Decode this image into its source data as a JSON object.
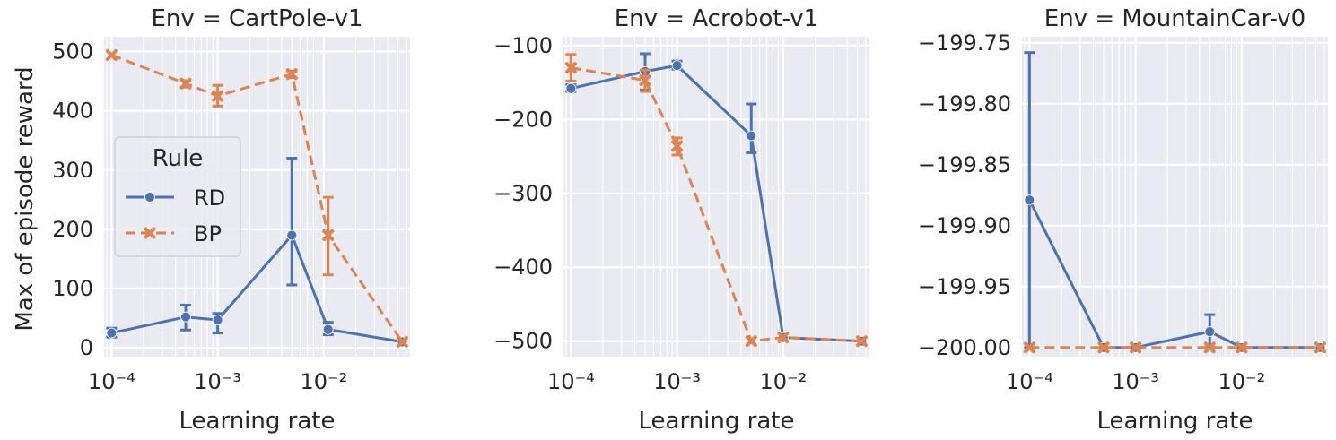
{
  "figure": {
    "ylabel": "Max of episode reward",
    "xlabel": "Learning rate"
  },
  "legend": {
    "title": "Rule",
    "placement": "center-left of first panel",
    "entries": [
      {
        "label": "RD",
        "color": "#4c72b0",
        "marker": "circle",
        "dash": "solid"
      },
      {
        "label": "BP",
        "color": "#dd8452",
        "marker": "x",
        "dash": "dashed"
      }
    ]
  },
  "chart_data": [
    {
      "type": "line",
      "title": "Env = CartPole-v1",
      "xlabel": "Learning rate",
      "ylabel": "Max of episode reward",
      "xscale": "log",
      "xlim": [
        8.5e-05,
        0.065
      ],
      "ylim": [
        -15,
        525
      ],
      "xtick_values": [
        0.0001,
        0.001,
        0.01
      ],
      "xtick_labels": [
        "10⁻⁴",
        "10⁻³",
        "10⁻²"
      ],
      "ytick_values": [
        0,
        100,
        200,
        300,
        400,
        500
      ],
      "ytick_labels": [
        "0",
        "100",
        "200",
        "300",
        "400",
        "500"
      ],
      "grid": true,
      "x": [
        0.0001,
        0.0005,
        0.001,
        0.005,
        0.011,
        0.055
      ],
      "series": [
        {
          "name": "RD",
          "values": [
            25,
            52,
            47,
            190,
            31,
            10
          ],
          "err_low": [
            18,
            30,
            25,
            106,
            22,
            10
          ],
          "err_high": [
            33,
            72,
            58,
            320,
            43,
            10
          ]
        },
        {
          "name": "BP",
          "values": [
            494,
            446,
            425,
            462,
            190,
            10
          ],
          "err_low": [
            494,
            440,
            408,
            456,
            123,
            10
          ],
          "err_high": [
            494,
            451,
            443,
            467,
            254,
            10
          ]
        }
      ]
    },
    {
      "type": "line",
      "title": "Env = Acrobot-v1",
      "xlabel": "Learning rate",
      "ylabel": "",
      "xscale": "log",
      "xlim": [
        8.5e-05,
        0.065
      ],
      "ylim": [
        -521,
        -88
      ],
      "xtick_values": [
        0.0001,
        0.001,
        0.01
      ],
      "xtick_labels": [
        "10⁻⁴",
        "10⁻³",
        "10⁻²"
      ],
      "ytick_values": [
        -100,
        -200,
        -300,
        -400,
        -500
      ],
      "ytick_labels": [
        "−100",
        "−200",
        "−300",
        "−400",
        "−500"
      ],
      "grid": true,
      "x": [
        0.0001,
        0.0005,
        0.001,
        0.005,
        0.01,
        0.055
      ],
      "series": [
        {
          "name": "RD",
          "values": [
            -158,
            -135,
            -127,
            -222,
            -495,
            -500
          ],
          "err_low": [
            -162,
            -160,
            -132,
            -245,
            -495,
            -500
          ],
          "err_high": [
            -153,
            -111,
            -121,
            -179,
            -495,
            -500
          ]
        },
        {
          "name": "BP",
          "values": [
            -130,
            -147,
            -236,
            -500,
            -495,
            -500
          ],
          "err_low": [
            -148,
            -162,
            -248,
            -500,
            -495,
            -500
          ],
          "err_high": [
            -112,
            -133,
            -225,
            -500,
            -495,
            -500
          ]
        }
      ]
    },
    {
      "type": "line",
      "title": "Env = MountainCar-v0",
      "xlabel": "Learning rate",
      "ylabel": "",
      "xscale": "log",
      "xlim": [
        8.5e-05,
        0.065
      ],
      "ylim": [
        -200.0075,
        -199.745
      ],
      "xtick_values": [
        0.0001,
        0.001,
        0.01
      ],
      "xtick_labels": [
        "10⁻⁴",
        "10⁻³",
        "10⁻²"
      ],
      "ytick_values": [
        -199.75,
        -199.8,
        -199.85,
        -199.9,
        -199.95,
        -200.0
      ],
      "ytick_labels": [
        "−199.75",
        "−199.80",
        "−199.85",
        "−199.90",
        "−199.95",
        "−200.00"
      ],
      "grid": true,
      "x": [
        0.0001,
        0.0005,
        0.001,
        0.005,
        0.01,
        0.055
      ],
      "series": [
        {
          "name": "RD",
          "values": [
            -199.879,
            -200.0,
            -200.0,
            -199.987,
            -200.0,
            -200.0
          ],
          "err_low": [
            -200.0,
            -200.0,
            -200.0,
            -200.0,
            -200.0,
            -200.0
          ],
          "err_high": [
            -199.758,
            -200.0,
            -200.0,
            -199.973,
            -200.0,
            -200.0
          ]
        },
        {
          "name": "BP",
          "values": [
            -200.0,
            -200.0,
            -200.0,
            -200.0,
            -200.0,
            -200.0
          ],
          "err_low": [
            -200.0,
            -200.0,
            -200.0,
            -200.0,
            -200.0,
            -200.0
          ],
          "err_high": [
            -200.0,
            -200.0,
            -200.0,
            -200.0,
            -200.0,
            -200.0
          ]
        }
      ]
    }
  ]
}
